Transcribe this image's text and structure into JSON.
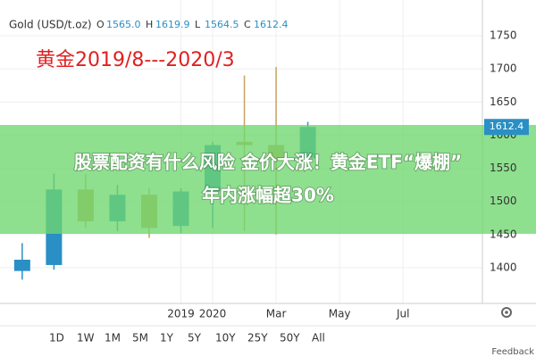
{
  "chart_data": {
    "type": "candlestick",
    "symbol": "Gold (USD/t.oz)",
    "ohlc_legend": [
      {
        "key": "O",
        "value": 1565.0,
        "label": "1565.0"
      },
      {
        "key": "H",
        "value": 1619.9,
        "label": "1619.9"
      },
      {
        "key": "L",
        "value": 1564.5,
        "label": "1564.5"
      },
      {
        "key": "C",
        "value": 1612.4,
        "label": "1612.4"
      }
    ],
    "annotation": "黄金2019/8---2020/3",
    "x": [
      0,
      1,
      2,
      3,
      4,
      5,
      6,
      7,
      8,
      9
    ],
    "open": [
      1395,
      1404,
      1518,
      1470,
      1510,
      1463,
      1515,
      1590,
      1585,
      1565
    ],
    "high": [
      1437,
      1542,
      1541,
      1525,
      1520,
      1520,
      1590,
      1690,
      1703,
      1620
    ],
    "low": [
      1382,
      1397,
      1460,
      1455,
      1445,
      1452,
      1460,
      1455,
      1450,
      1564
    ],
    "close": [
      1412,
      1518,
      1470,
      1510,
      1460,
      1515,
      1585,
      1585,
      1565,
      1612.4
    ],
    "up_color": "#2a8fc4",
    "down_color": "#c9a25c",
    "last_price": {
      "value": 1612.4,
      "label": "1612.4"
    },
    "xlim": [
      -0.7,
      14.5
    ],
    "xticks": [
      {
        "value": 5,
        "label": "2019"
      },
      {
        "value": 6,
        "label": "2020"
      },
      {
        "value": 8,
        "label": "Mar"
      },
      {
        "value": 10,
        "label": "May"
      },
      {
        "value": 12,
        "label": "Jul"
      }
    ],
    "ylim": [
      1346,
      1804
    ],
    "yticks": [
      1400,
      1450,
      1500,
      1550,
      1600,
      1650,
      1700,
      1750
    ],
    "grid": true,
    "ranges": [
      "1D",
      "1W",
      "1M",
      "5M",
      "1Y",
      "5Y",
      "10Y",
      "25Y",
      "50Y",
      "All"
    ],
    "feedback": "Feedback"
  },
  "banner": {
    "line1": "股票配资有什么风险 金价大涨！黄金ETF“爆棚”",
    "line2": "年内涨幅超30%"
  }
}
